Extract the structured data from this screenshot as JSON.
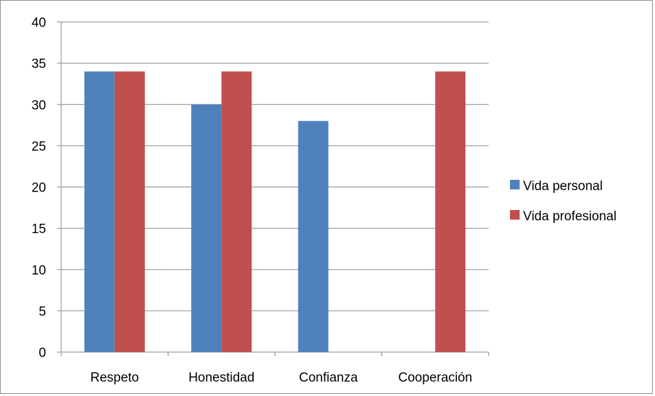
{
  "chart_data": {
    "type": "bar",
    "categories": [
      "Respeto",
      "Honestidad",
      "Confianza",
      "Cooperación"
    ],
    "series": [
      {
        "name": "Vida personal",
        "color": "#4F81BD",
        "values": [
          34,
          30,
          28,
          0
        ]
      },
      {
        "name": "Vida profesional",
        "color": "#C0504D",
        "values": [
          34,
          34,
          0,
          34
        ]
      }
    ],
    "yticks": [
      0,
      5,
      10,
      15,
      20,
      25,
      30,
      35,
      40
    ],
    "ylim": [
      0,
      40
    ],
    "grid": true,
    "legend_position": "right",
    "title": "",
    "xlabel": "",
    "ylabel": ""
  }
}
